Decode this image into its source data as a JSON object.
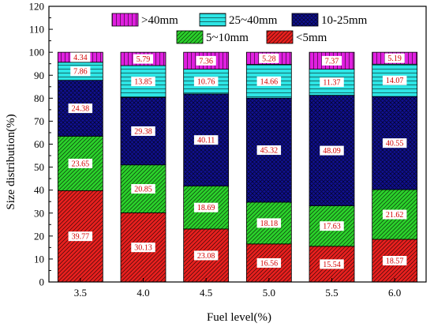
{
  "chart_data": {
    "type": "bar",
    "stacked": true,
    "xlabel": "Fuel level(%)",
    "ylabel": "Size distribution(%)",
    "ylim": [
      0,
      120
    ],
    "yticks": [
      0,
      10,
      20,
      30,
      40,
      50,
      60,
      70,
      80,
      90,
      100,
      110,
      120
    ],
    "categories": [
      "3.5",
      "4.0",
      "4.5",
      "5.0",
      "5.5",
      "6.0"
    ],
    "grid": false,
    "legend_position": "top",
    "series": [
      {
        "name": "<5mm",
        "color": "#e8201e",
        "hatch": "diagonal-dense",
        "values": [
          39.77,
          30.13,
          23.08,
          16.56,
          15.54,
          18.57
        ]
      },
      {
        "name": "5~10mm",
        "color": "#2bd12b",
        "hatch": "diagonal",
        "values": [
          23.65,
          20.85,
          18.69,
          18.18,
          17.63,
          21.62
        ]
      },
      {
        "name": "10-25mm",
        "color": "#101090",
        "hatch": "crosshatch",
        "values": [
          24.38,
          29.38,
          40.11,
          45.32,
          48.09,
          40.55
        ]
      },
      {
        "name": "25~40mm",
        "color": "#2ee5e5",
        "hatch": "horizontal",
        "values": [
          7.86,
          13.85,
          10.76,
          14.66,
          11.37,
          14.07
        ]
      },
      {
        "name": ">40mm",
        "color": "#e020e0",
        "hatch": "vertical",
        "values": [
          4.34,
          5.79,
          7.36,
          5.28,
          7.37,
          5.19
        ]
      }
    ],
    "legend_display": [
      {
        "label": ">40mm",
        "series_index": 4
      },
      {
        "label": "25~40mm",
        "series_index": 3
      },
      {
        "label": "10-25mm",
        "series_index": 2
      },
      {
        "label": "5~10mm",
        "series_index": 1
      },
      {
        "label": "<5mm",
        "series_index": 0
      }
    ]
  }
}
